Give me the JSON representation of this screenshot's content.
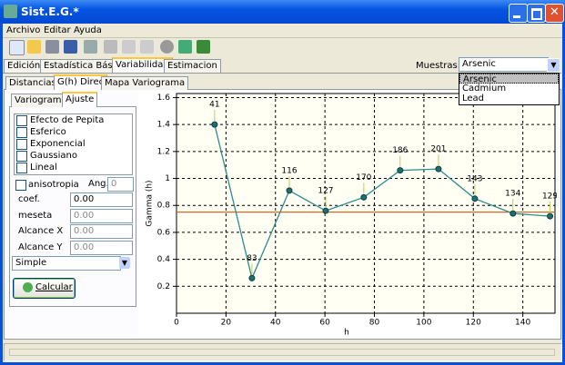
{
  "window": {
    "title": "Sist.E.G.*"
  },
  "menu": [
    "Archivo",
    "Editar",
    "Ayuda"
  ],
  "main_tabs": [
    "Edición",
    "Estadística Básica",
    "Variabilidad",
    "Estimacion"
  ],
  "samples": {
    "label": "Muestras:",
    "selected": "Arsenic",
    "options": [
      "Arsenic",
      "Cadmium",
      "Lead"
    ]
  },
  "sub_tabs": [
    "Distancias",
    "G(h) Direc",
    "Mapa Variograma"
  ],
  "panel_tabs": [
    "Variograma",
    "Ajuste"
  ],
  "models": [
    "Efecto de Pepita",
    "Esferico",
    "Exponencial",
    "Gaussiano",
    "Lineal"
  ],
  "anisotropy": {
    "label": "anisotropia",
    "angle_label": "Ang.",
    "angle": "0"
  },
  "params": [
    {
      "label": "coef.",
      "value": "0.00"
    },
    {
      "label": "meseta",
      "value": "0.00"
    },
    {
      "label": "Alcance X",
      "value": "0.00"
    },
    {
      "label": "Alcance Y",
      "value": "0.00"
    }
  ],
  "method": "Simple",
  "button": "Calcular",
  "chart_data": {
    "type": "line",
    "x_label": "h",
    "y_label": "Gamma (h)",
    "x": [
      15.4,
      30.5,
      45.6,
      60.3,
      75.7,
      90.4,
      105.9,
      120.6,
      136,
      151
    ],
    "series": [
      {
        "color": "#2e8b8b",
        "values": [
          1.4,
          0.26,
          0.91,
          0.76,
          0.86,
          1.06,
          1.07,
          0.85,
          0.74,
          0.72
        ],
        "counts": [
          41,
          83,
          116,
          127,
          170,
          186,
          201,
          143,
          134,
          129
        ]
      }
    ],
    "reference_line": {
      "value": 0.75,
      "color": "#d2691e"
    },
    "xlim": [
      0,
      153
    ],
    "ylim": [
      0,
      1.63
    ],
    "xticks": [
      0,
      20,
      40,
      60,
      80,
      100,
      120,
      140
    ],
    "yticks": [
      0.2,
      0.4,
      0.6,
      0.8,
      1,
      1.2,
      1.4,
      1.6
    ],
    "grid": true
  }
}
